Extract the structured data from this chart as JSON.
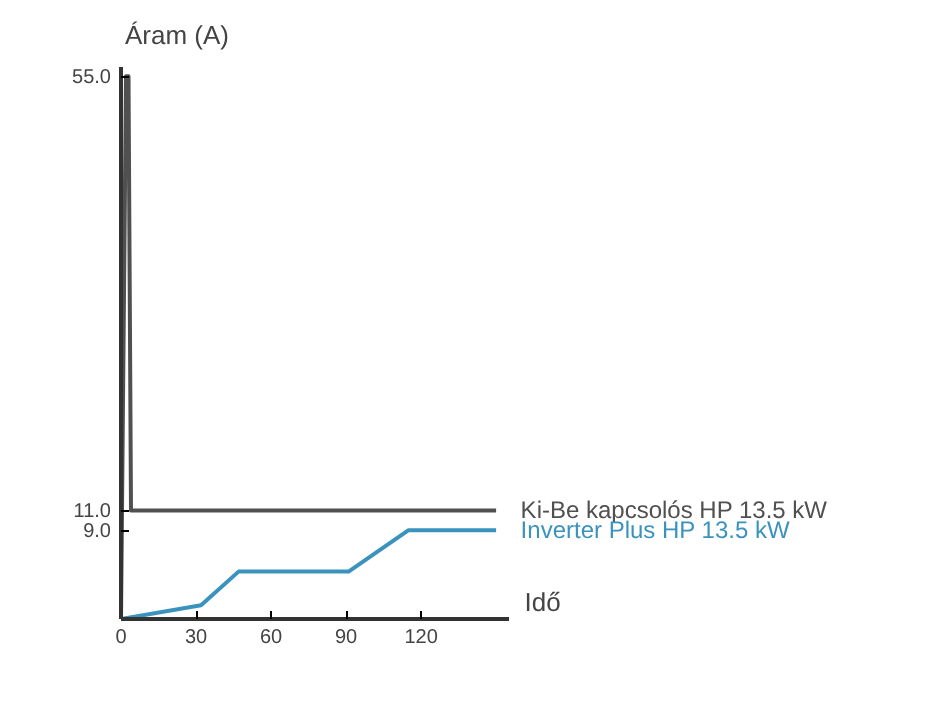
{
  "chart_data": {
    "type": "line",
    "xlabel": "Idő",
    "ylabel": "Áram (A)",
    "xlim": [
      0,
      155
    ],
    "xticks": [
      0,
      30,
      60,
      90,
      120
    ],
    "ylim": [
      0,
      56
    ],
    "yticks": [
      {
        "value": 9,
        "label": "9.0"
      },
      {
        "value": 11,
        "label": "11.0"
      },
      {
        "value": 55,
        "label": "55.0"
      }
    ],
    "grid": false,
    "series": [
      {
        "name": "Ki-Be kapcsolós HP 13.5 kW",
        "color": "#505050",
        "x": [
          0,
          2,
          3,
          4,
          150
        ],
        "values": [
          0,
          55,
          55,
          11,
          11
        ]
      },
      {
        "name": "Inverter Plus HP 13.5 kW",
        "color": "#3a93bd",
        "x": [
          0,
          32,
          47,
          91,
          115,
          150
        ],
        "values": [
          0,
          1.4,
          4.8,
          4.8,
          9,
          9
        ]
      }
    ]
  }
}
